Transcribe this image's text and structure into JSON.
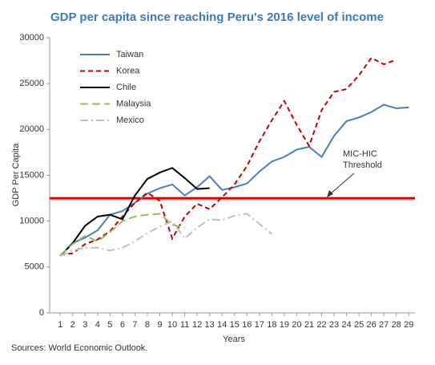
{
  "chart_data": {
    "type": "line",
    "title": "GDP per capita since reaching Peru's 2016 level of income",
    "y_label": "GDP Per Capita",
    "x_label": "Years",
    "source": "Sources: World Economic Outlook.",
    "x": [
      1,
      2,
      3,
      4,
      5,
      6,
      7,
      8,
      9,
      10,
      11,
      12,
      13,
      14,
      15,
      16,
      17,
      18,
      19,
      20,
      21,
      22,
      23,
      24,
      25,
      26,
      27,
      28,
      29
    ],
    "xlim": [
      0.15,
      29.5
    ],
    "xticks": [
      1,
      2,
      3,
      4,
      5,
      6,
      7,
      8,
      9,
      10,
      11,
      12,
      13,
      14,
      15,
      16,
      17,
      18,
      19,
      20,
      21,
      22,
      23,
      24,
      25,
      26,
      27,
      28,
      29
    ],
    "ylim": [
      0,
      30000
    ],
    "yticks": [
      0,
      5000,
      10000,
      15000,
      20000,
      25000,
      30000
    ],
    "threshold": {
      "value": 12500,
      "color": "#e00000"
    },
    "annotation": [
      "MIC-HIC",
      "Threshold"
    ],
    "series": [
      {
        "name": "Taiwan",
        "color": "#4a7ebb",
        "dash": "none",
        "values": [
          6200,
          7600,
          8200,
          9000,
          10700,
          11100,
          12000,
          13000,
          13600,
          14000,
          12800,
          13700,
          14900,
          13400,
          13700,
          14100,
          15400,
          16500,
          17000,
          17800,
          18100,
          17000,
          19300,
          20900,
          21300,
          21900,
          22700,
          22300,
          22400
        ]
      },
      {
        "name": "Korea",
        "color": "#c00000",
        "dash": "6,4",
        "values": [
          6300,
          6500,
          7500,
          8000,
          8900,
          10500,
          12000,
          13100,
          12200,
          8100,
          10500,
          11900,
          11300,
          12600,
          14000,
          16000,
          18700,
          21000,
          23100,
          20500,
          18200,
          22100,
          24100,
          24400,
          25900,
          27800,
          27100,
          27600,
          null
        ]
      },
      {
        "name": "Chile",
        "color": "#000000",
        "dash": "none",
        "values": [
          6200,
          7600,
          9500,
          10500,
          10700,
          10200,
          12800,
          14600,
          15300,
          15800,
          14700,
          13500,
          13600,
          null,
          null,
          null,
          null,
          null,
          null,
          null,
          null,
          null,
          null,
          null,
          null,
          null,
          null,
          null,
          null
        ]
      },
      {
        "name": "Malaysia",
        "color": "#9bbb59",
        "dash": "10,5",
        "values": [
          6300,
          7500,
          8400,
          7800,
          8800,
          10000,
          10500,
          10700,
          10800,
          9600,
          9300,
          null,
          null,
          null,
          null,
          null,
          null,
          null,
          null,
          null,
          null,
          null,
          null,
          null,
          null,
          null,
          null,
          null,
          null
        ]
      },
      {
        "name": "Mexico",
        "color": "#bfbfbf",
        "dash": "10,4,2,4",
        "values": [
          6200,
          6800,
          7100,
          7100,
          6800,
          7100,
          7800,
          8700,
          9400,
          10000,
          8100,
          9300,
          10200,
          10100,
          10600,
          10800,
          9700,
          8600,
          null,
          null,
          null,
          null,
          null,
          null,
          null,
          null,
          null,
          null,
          null
        ]
      }
    ]
  }
}
